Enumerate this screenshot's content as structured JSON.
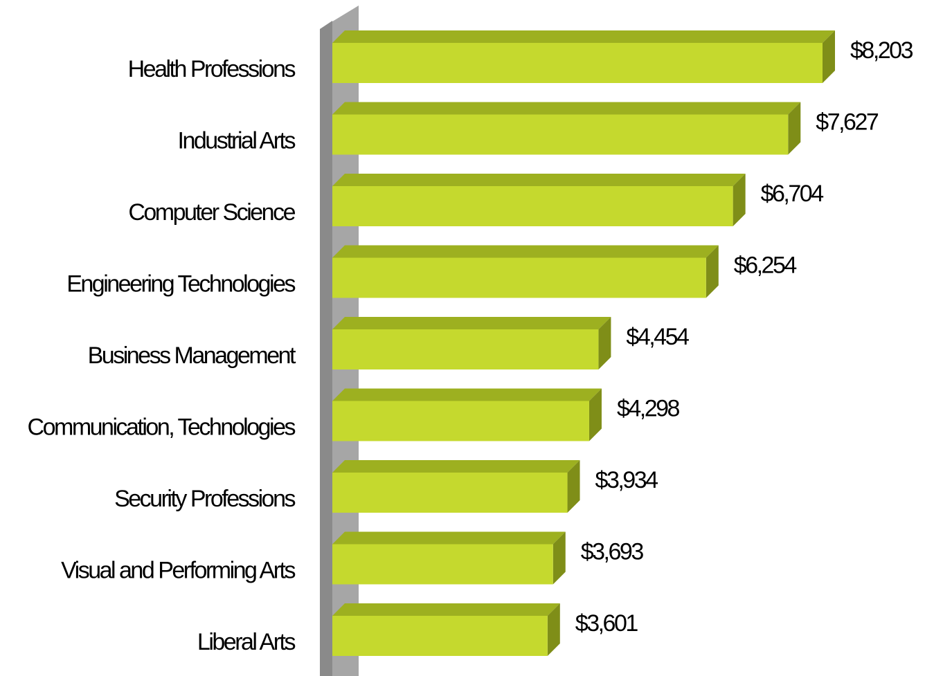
{
  "chart_data": {
    "type": "bar",
    "categories": [
      "Health Professions",
      "Industrial Arts",
      "Computer Science",
      "Engineering Technologies",
      "Business Management",
      "Communication, Technologies",
      "Security Professions",
      "Visual and Performing Arts",
      "Liberal Arts"
    ],
    "values": [
      8203,
      7627,
      6704,
      6254,
      4454,
      4298,
      3934,
      3693,
      3601
    ],
    "value_labels": [
      "$8,203",
      "$7,627",
      "$6,704",
      "$6,254",
      "$4,454",
      "$4,298",
      "$3,934",
      "$3,693",
      "$3,601"
    ],
    "color": "#c5d92e"
  }
}
